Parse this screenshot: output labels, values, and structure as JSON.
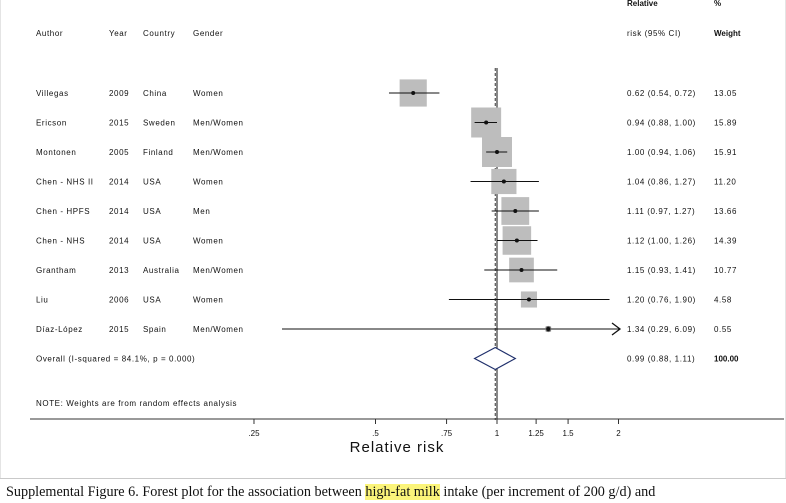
{
  "headers": {
    "author": "Author",
    "year": "Year",
    "country": "Country",
    "gender": "Gender",
    "rr_line1": "Relative",
    "rr_line2": "risk (95% CI)",
    "weight_line1": "%",
    "weight_line2": "Weight"
  },
  "chart_data": {
    "type": "forest",
    "xlabel": "Relative risk",
    "x_scale": "log",
    "xlim": [
      0.2,
      2.2
    ],
    "x_ticks": [
      {
        "value": 0.25,
        "label": ".25"
      },
      {
        "value": 0.5,
        "label": ".5"
      },
      {
        "value": 0.75,
        "label": ".75"
      },
      {
        "value": 1,
        "label": "1"
      },
      {
        "value": 1.25,
        "label": "1.25"
      },
      {
        "value": 1.5,
        "label": "1.5"
      },
      {
        "value": 2,
        "label": "2"
      }
    ],
    "null_line": 1,
    "studies": [
      {
        "author": "Villegas",
        "year": "2009",
        "country": "China",
        "gender": "Women",
        "rr": 0.62,
        "lo": 0.54,
        "hi": 0.72,
        "ci_text": "0.62 (0.54, 0.72)",
        "weight": 13.05,
        "weight_text": "13.05",
        "arrow_right": false
      },
      {
        "author": "Ericson",
        "year": "2015",
        "country": "Sweden",
        "gender": "Men/Women",
        "rr": 0.94,
        "lo": 0.88,
        "hi": 1.0,
        "ci_text": "0.94 (0.88, 1.00)",
        "weight": 15.89,
        "weight_text": "15.89",
        "arrow_right": false
      },
      {
        "author": "Montonen",
        "year": "2005",
        "country": "Finland",
        "gender": "Men/Women",
        "rr": 1.0,
        "lo": 0.94,
        "hi": 1.06,
        "ci_text": "1.00 (0.94, 1.06)",
        "weight": 15.91,
        "weight_text": "15.91",
        "arrow_right": false
      },
      {
        "author": "Chen - NHS II",
        "year": "2014",
        "country": "USA",
        "gender": "Women",
        "rr": 1.04,
        "lo": 0.86,
        "hi": 1.27,
        "ci_text": "1.04 (0.86, 1.27)",
        "weight": 11.2,
        "weight_text": "11.20",
        "arrow_right": false
      },
      {
        "author": "Chen - HPFS",
        "year": "2014",
        "country": "USA",
        "gender": "Men",
        "rr": 1.11,
        "lo": 0.97,
        "hi": 1.27,
        "ci_text": "1.11 (0.97, 1.27)",
        "weight": 13.66,
        "weight_text": "13.66",
        "arrow_right": false
      },
      {
        "author": "Chen - NHS",
        "year": "2014",
        "country": "USA",
        "gender": "Women",
        "rr": 1.12,
        "lo": 1.0,
        "hi": 1.26,
        "ci_text": "1.12 (1.00, 1.26)",
        "weight": 14.39,
        "weight_text": "14.39",
        "arrow_right": false
      },
      {
        "author": "Grantham",
        "year": "2013",
        "country": "Australia",
        "gender": "Men/Women",
        "rr": 1.15,
        "lo": 0.93,
        "hi": 1.41,
        "ci_text": "1.15 (0.93, 1.41)",
        "weight": 10.77,
        "weight_text": "10.77",
        "arrow_right": false
      },
      {
        "author": "Liu",
        "year": "2006",
        "country": "USA",
        "gender": "Women",
        "rr": 1.2,
        "lo": 0.76,
        "hi": 1.9,
        "ci_text": "1.20 (0.76, 1.90)",
        "weight": 4.58,
        "weight_text": "4.58",
        "arrow_right": false
      },
      {
        "author": "Díaz-López",
        "year": "2015",
        "country": "Spain",
        "gender": "Men/Women",
        "rr": 1.34,
        "lo": 0.29,
        "hi": 6.09,
        "ci_text": "1.34 (0.29, 6.09)",
        "weight": 0.55,
        "weight_text": "0.55",
        "arrow_right": true
      }
    ],
    "overall": {
      "label": "Overall  (I-squared = 84.1%, p = 0.000)",
      "rr": 0.99,
      "lo": 0.88,
      "hi": 1.11,
      "ci_text": "0.99 (0.88, 1.11)",
      "weight_text": "100.00"
    },
    "note": "NOTE: Weights are from random effects analysis"
  },
  "caption": {
    "before": "Supplemental Figure 6. Forest plot for the association between ",
    "highlight": "high-fat milk",
    "after": " intake (per increment of 200 g/d) and"
  },
  "colors": {
    "box": "#bdbdbd",
    "diamond": "#1f2f6b",
    "line": "#111111",
    "highlight": "#fbf47a"
  }
}
